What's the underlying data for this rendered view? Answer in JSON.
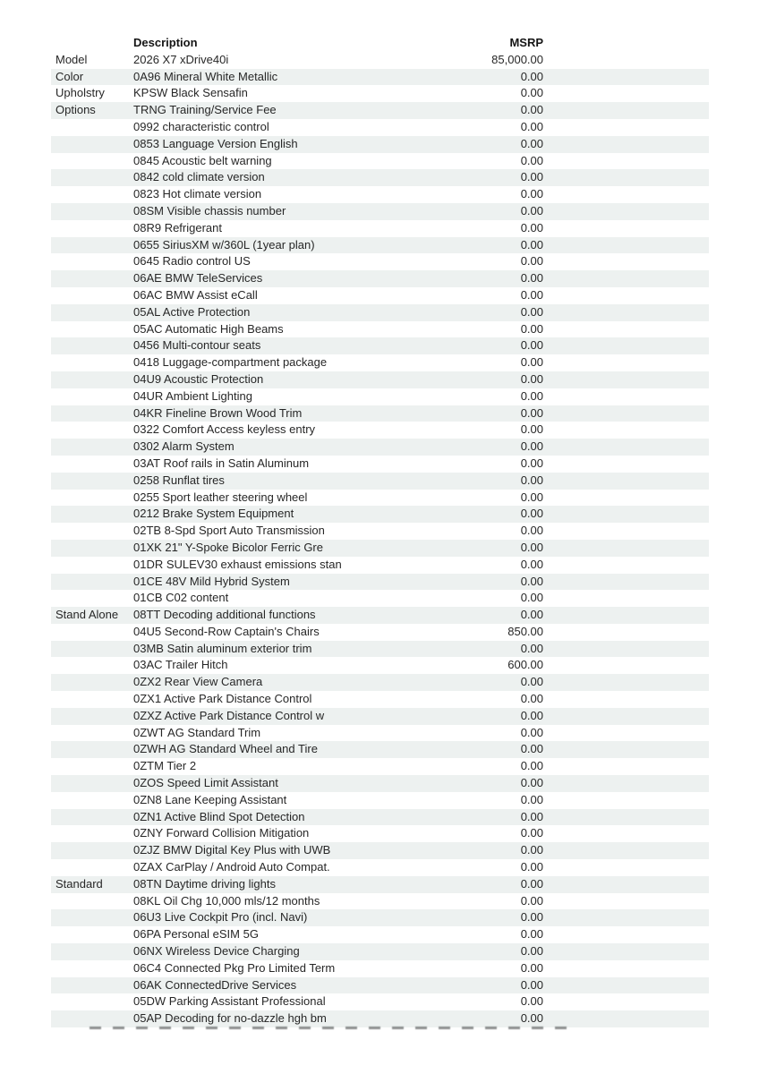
{
  "table": {
    "headers": {
      "category": "",
      "description": "Description",
      "msrp": "MSRP"
    },
    "rows": [
      {
        "category": "Model",
        "description": "2026 X7 xDrive40i",
        "msrp": "85,000.00"
      },
      {
        "category": "Color",
        "description": "0A96 Mineral White Metallic",
        "msrp": "0.00"
      },
      {
        "category": "Upholstry",
        "description": "KPSW Black Sensafin",
        "msrp": "0.00"
      },
      {
        "category": "Options",
        "description": "TRNG Training/Service Fee",
        "msrp": "0.00"
      },
      {
        "category": "",
        "description": "0992 characteristic control",
        "msrp": "0.00"
      },
      {
        "category": "",
        "description": "0853 Language Version English",
        "msrp": "0.00"
      },
      {
        "category": "",
        "description": "0845 Acoustic belt warning",
        "msrp": "0.00"
      },
      {
        "category": "",
        "description": "0842 cold climate version",
        "msrp": "0.00"
      },
      {
        "category": "",
        "description": "0823 Hot climate version",
        "msrp": "0.00"
      },
      {
        "category": "",
        "description": "08SM Visible chassis number",
        "msrp": "0.00"
      },
      {
        "category": "",
        "description": "08R9 Refrigerant",
        "msrp": "0.00"
      },
      {
        "category": "",
        "description": "0655 SiriusXM w/360L (1year plan)",
        "msrp": "0.00"
      },
      {
        "category": "",
        "description": "0645 Radio control US",
        "msrp": "0.00"
      },
      {
        "category": "",
        "description": "06AE BMW TeleServices",
        "msrp": "0.00"
      },
      {
        "category": "",
        "description": "06AC BMW Assist eCall",
        "msrp": "0.00"
      },
      {
        "category": "",
        "description": "05AL Active Protection",
        "msrp": "0.00"
      },
      {
        "category": "",
        "description": "05AC Automatic High Beams",
        "msrp": "0.00"
      },
      {
        "category": "",
        "description": "0456 Multi-contour seats",
        "msrp": "0.00"
      },
      {
        "category": "",
        "description": "0418 Luggage-compartment package",
        "msrp": "0.00"
      },
      {
        "category": "",
        "description": "04U9 Acoustic Protection",
        "msrp": "0.00"
      },
      {
        "category": "",
        "description": "04UR Ambient Lighting",
        "msrp": "0.00"
      },
      {
        "category": "",
        "description": "04KR Fineline Brown Wood Trim",
        "msrp": "0.00"
      },
      {
        "category": "",
        "description": "0322 Comfort Access keyless entry",
        "msrp": "0.00"
      },
      {
        "category": "",
        "description": "0302 Alarm System",
        "msrp": "0.00"
      },
      {
        "category": "",
        "description": "03AT Roof rails in Satin Aluminum",
        "msrp": "0.00"
      },
      {
        "category": "",
        "description": "0258 Runflat tires",
        "msrp": "0.00"
      },
      {
        "category": "",
        "description": "0255 Sport leather steering wheel",
        "msrp": "0.00"
      },
      {
        "category": "",
        "description": "0212 Brake System Equipment",
        "msrp": "0.00"
      },
      {
        "category": "",
        "description": "02TB 8-Spd Sport Auto Transmission",
        "msrp": "0.00"
      },
      {
        "category": "",
        "description": "01XK 21\" Y-Spoke Bicolor Ferric Gre",
        "msrp": "0.00"
      },
      {
        "category": "",
        "description": "01DR SULEV30 exhaust emissions stan",
        "msrp": "0.00"
      },
      {
        "category": "",
        "description": "01CE 48V Mild Hybrid System",
        "msrp": "0.00"
      },
      {
        "category": "",
        "description": "01CB C02 content",
        "msrp": "0.00"
      },
      {
        "category": "Stand Alone",
        "description": "08TT Decoding additional functions",
        "msrp": "0.00"
      },
      {
        "category": "",
        "description": "04U5 Second-Row Captain's Chairs",
        "msrp": "850.00"
      },
      {
        "category": "",
        "description": "03MB Satin aluminum exterior trim",
        "msrp": "0.00"
      },
      {
        "category": "",
        "description": "03AC Trailer Hitch",
        "msrp": "600.00"
      },
      {
        "category": "",
        "description": "0ZX2 Rear View Camera",
        "msrp": "0.00"
      },
      {
        "category": "",
        "description": "0ZX1 Active Park Distance Control",
        "msrp": "0.00"
      },
      {
        "category": "",
        "description": "0ZXZ Active Park Distance Control w",
        "msrp": "0.00"
      },
      {
        "category": "",
        "description": "0ZWT AG Standard Trim",
        "msrp": "0.00"
      },
      {
        "category": "",
        "description": "0ZWH AG Standard Wheel and Tire",
        "msrp": "0.00"
      },
      {
        "category": "",
        "description": "0ZTM Tier 2",
        "msrp": "0.00"
      },
      {
        "category": "",
        "description": "0ZOS Speed Limit Assistant",
        "msrp": "0.00"
      },
      {
        "category": "",
        "description": "0ZN8 Lane Keeping Assistant",
        "msrp": "0.00"
      },
      {
        "category": "",
        "description": "0ZN1 Active Blind Spot Detection",
        "msrp": "0.00"
      },
      {
        "category": "",
        "description": "0ZNY Forward Collision Mitigation",
        "msrp": "0.00"
      },
      {
        "category": "",
        "description": "0ZJZ BMW Digital Key Plus with UWB",
        "msrp": "0.00"
      },
      {
        "category": "",
        "description": "0ZAX CarPlay / Android Auto Compat.",
        "msrp": "0.00"
      },
      {
        "category": "Standard",
        "description": "08TN Daytime driving lights",
        "msrp": "0.00"
      },
      {
        "category": "",
        "description": "08KL Oil Chg 10,000 mls/12 months",
        "msrp": "0.00"
      },
      {
        "category": "",
        "description": "06U3 Live Cockpit Pro (incl. Navi)",
        "msrp": "0.00"
      },
      {
        "category": "",
        "description": "06PA Personal eSIM 5G",
        "msrp": "0.00"
      },
      {
        "category": "",
        "description": "06NX Wireless Device Charging",
        "msrp": "0.00"
      },
      {
        "category": "",
        "description": "06C4 Connected Pkg Pro Limited Term",
        "msrp": "0.00"
      },
      {
        "category": "",
        "description": "06AK ConnectedDrive Services",
        "msrp": "0.00"
      },
      {
        "category": "",
        "description": "05DW Parking Assistant Professional",
        "msrp": "0.00"
      },
      {
        "category": "",
        "description": "05AP Decoding for no-dazzle hgh bm",
        "msrp": "0.00"
      }
    ],
    "colors": {
      "shaded_row": "#edf1f0",
      "body_text": "#272727",
      "header_text": "#151515",
      "page_background": "#ffffff"
    }
  }
}
